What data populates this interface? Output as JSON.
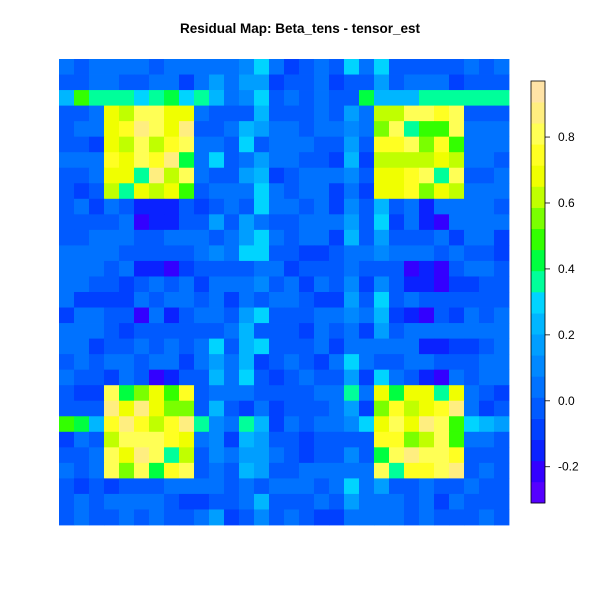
{
  "chart_data": {
    "type": "heatmap",
    "title": "Residual Map: Beta_tens - tensor_est",
    "xlabel": "",
    "ylabel": "",
    "rows": 30,
    "cols": 30,
    "colorbar": {
      "min": -0.31,
      "max": 0.97,
      "ticks": [
        -0.2,
        0.0,
        0.2,
        0.4,
        0.6,
        0.8
      ],
      "tick_labels": [
        "-0.2",
        "0.0",
        "0.2",
        "0.4",
        "0.6",
        "0.8"
      ],
      "colors": [
        "#5500ff",
        "#3300ff",
        "#0a22ff",
        "#0040ff",
        "#005aff",
        "#0072ff",
        "#0088ff",
        "#009eff",
        "#00b6ff",
        "#00d4ff",
        "#00ff9a",
        "#00ff40",
        "#33ff00",
        "#7aff00",
        "#c0ff00",
        "#f0ff00",
        "#ffff22",
        "#ffff55",
        "#ffee80",
        "#ffe3a6"
      ]
    },
    "pattern": {
      "blocks": [
        [
          3,
          8,
          3,
          8
        ],
        [
          3,
          8,
          21,
          26
        ],
        [
          21,
          26,
          3,
          8
        ],
        [
          21,
          26,
          21,
          26
        ]
      ],
      "block_value": 0.72,
      "stripe_rows": [
        2,
        23
      ],
      "stripe_cols": [
        10,
        12,
        13,
        19,
        21
      ],
      "neg_rows": [
        9,
        10,
        13,
        14,
        16,
        18,
        20
      ],
      "neg_cols": [
        5,
        6,
        7,
        23,
        24,
        25
      ],
      "background_value": 0.0
    }
  }
}
